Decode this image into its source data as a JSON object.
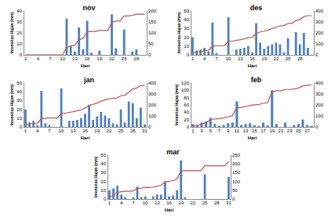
{
  "chart_data": [
    {
      "type": "bar",
      "title": "nov",
      "x_label": "Hari",
      "y_label": "Intensitas Hujan (mm)",
      "categories": [
        "1",
        null,
        null,
        "4",
        null,
        null,
        "7",
        null,
        null,
        "10",
        null,
        null,
        "13",
        null,
        null,
        "16",
        null,
        null,
        "19",
        null,
        null,
        "22",
        null,
        null,
        "25",
        null,
        null,
        "28",
        null,
        null
      ],
      "series": [
        {
          "type": "bar",
          "color": "#4f81bd",
          "values": [
            0,
            0,
            0,
            0,
            0,
            0,
            0,
            0,
            0,
            0,
            33,
            8,
            3,
            25,
            5,
            31,
            2,
            0,
            4,
            0,
            0,
            37,
            6,
            0,
            23,
            0,
            3,
            5,
            0,
            0
          ]
        },
        {
          "type": "line",
          "axis": "y2",
          "color": "#c0504d",
          "values": [
            0,
            0,
            0,
            0,
            0,
            0,
            0,
            0,
            0,
            0,
            33,
            41,
            44,
            69,
            74,
            105,
            107,
            107,
            111,
            111,
            111,
            148,
            154,
            154,
            177,
            177,
            180,
            185,
            185,
            185
          ]
        }
      ],
      "ylim": [
        0,
        40
      ],
      "yticks": [
        0,
        10,
        20,
        30,
        40
      ],
      "y2lim": [
        0,
        200
      ],
      "y2ticks": [
        0,
        50,
        100,
        150,
        200
      ],
      "grid": false
    },
    {
      "type": "bar",
      "title": "des",
      "x_label": "Hari",
      "y_label": "Intensitas Hujan (mm)",
      "categories": [
        "1",
        null,
        null,
        "4",
        null,
        null,
        "7",
        null,
        null,
        "10",
        null,
        null,
        "13",
        null,
        null,
        "16",
        null,
        null,
        "19",
        null,
        null,
        "22",
        null,
        null,
        "25",
        null,
        null,
        "28",
        null,
        null,
        null
      ],
      "series": [
        {
          "type": "bar",
          "color": "#4f81bd",
          "values": [
            20,
            5,
            6,
            8,
            4,
            37,
            2,
            0,
            0,
            43,
            0,
            6,
            7,
            8,
            10,
            3,
            36,
            14,
            7,
            10,
            12,
            14,
            12,
            3,
            19,
            0,
            26,
            12,
            25,
            8,
            0
          ]
        },
        {
          "type": "line",
          "axis": "y2",
          "color": "#c0504d",
          "values": [
            20,
            25,
            31,
            39,
            43,
            80,
            82,
            82,
            82,
            125,
            125,
            131,
            138,
            146,
            156,
            159,
            195,
            209,
            216,
            226,
            238,
            252,
            264,
            267,
            286,
            286,
            312,
            324,
            349,
            357,
            357
          ]
        }
      ],
      "ylim": [
        0,
        50
      ],
      "yticks": [
        0,
        10,
        20,
        30,
        40,
        50
      ],
      "y2lim": [
        0,
        400
      ],
      "y2ticks": [
        0,
        100,
        200,
        300,
        400
      ],
      "grid": false
    },
    {
      "type": "bar",
      "title": "jan",
      "x_label": "Hari",
      "y_label": "Intensitas Hujan (mm)",
      "categories": [
        "1",
        null,
        null,
        "4",
        null,
        null,
        "7",
        null,
        null,
        "10",
        null,
        null,
        "13",
        null,
        null,
        "16",
        null,
        null,
        "19",
        null,
        null,
        "22",
        null,
        null,
        "25",
        null,
        null,
        "28",
        null,
        null,
        "31"
      ],
      "series": [
        {
          "type": "bar",
          "color": "#4f81bd",
          "values": [
            20,
            5,
            7,
            2,
            41,
            4,
            2,
            0,
            0,
            44,
            0,
            7,
            7,
            8,
            10,
            15,
            25,
            8,
            12,
            17,
            13,
            10,
            4,
            3,
            20,
            5,
            29,
            27,
            10,
            22,
            3
          ]
        },
        {
          "type": "line",
          "axis": "y2",
          "color": "#c0504d",
          "values": [
            20,
            25,
            32,
            34,
            75,
            79,
            81,
            81,
            81,
            125,
            125,
            132,
            139,
            147,
            157,
            172,
            197,
            205,
            217,
            234,
            247,
            257,
            261,
            264,
            284,
            289,
            318,
            345,
            355,
            377,
            380
          ]
        }
      ],
      "ylim": [
        0,
        50
      ],
      "yticks": [
        0,
        10,
        20,
        30,
        40,
        50
      ],
      "y2lim": [
        0,
        400
      ],
      "y2ticks": [
        0,
        100,
        200,
        300,
        400
      ],
      "grid": false
    },
    {
      "type": "bar",
      "title": "feb",
      "x_label": "Hari",
      "y_label": "Intensitas Hujan (mm)",
      "categories": [
        "1",
        null,
        "3",
        null,
        "5",
        null,
        "7",
        null,
        "9",
        null,
        "11",
        null,
        "13",
        null,
        "15",
        null,
        "17",
        null,
        "19",
        null,
        "21",
        null,
        "23",
        null,
        "25",
        null,
        "27",
        null
      ],
      "series": [
        {
          "type": "bar",
          "color": "#4f81bd",
          "values": [
            8,
            5,
            12,
            15,
            25,
            8,
            3,
            5,
            10,
            12,
            70,
            5,
            8,
            10,
            5,
            3,
            12,
            5,
            100,
            8,
            0,
            12,
            0,
            5,
            8,
            20,
            5,
            3
          ]
        },
        {
          "type": "line",
          "axis": "y2",
          "color": "#c0504d",
          "values": [
            8,
            13,
            25,
            40,
            65,
            73,
            76,
            81,
            91,
            103,
            173,
            178,
            186,
            196,
            201,
            204,
            216,
            221,
            321,
            329,
            329,
            341,
            341,
            346,
            354,
            374,
            379,
            382
          ]
        }
      ],
      "ylim": [
        0,
        120
      ],
      "yticks": [
        0,
        20,
        40,
        60,
        80,
        100,
        120
      ],
      "y2lim": [
        0,
        400
      ],
      "y2ticks": [
        0,
        100,
        200,
        300,
        400
      ],
      "grid": false
    },
    {
      "type": "bar",
      "title": "mar",
      "x_label": "Hari",
      "y_label": "Intensitas Hujan (mm)",
      "categories": [
        "1",
        null,
        null,
        "4",
        null,
        null,
        "7",
        null,
        null,
        "10",
        null,
        null,
        "13",
        null,
        null,
        "16",
        null,
        null,
        "19",
        null,
        null,
        "22",
        null,
        null,
        "25",
        null,
        null,
        "28",
        null,
        null,
        "31"
      ],
      "series": [
        {
          "type": "bar",
          "color": "#4f81bd",
          "values": [
            10,
            12,
            15,
            5,
            2,
            0,
            2,
            14,
            2,
            3,
            0,
            3,
            5,
            5,
            20,
            3,
            4,
            10,
            44,
            2,
            0,
            0,
            0,
            0,
            28,
            0,
            0,
            0,
            0,
            0,
            25
          ]
        },
        {
          "type": "line",
          "axis": "y2",
          "color": "#c0504d",
          "values": [
            10,
            22,
            37,
            42,
            44,
            44,
            46,
            60,
            62,
            65,
            65,
            68,
            73,
            78,
            98,
            101,
            105,
            115,
            159,
            161,
            161,
            161,
            161,
            161,
            189,
            189,
            189,
            189,
            189,
            189,
            214
          ]
        }
      ],
      "ylim": [
        0,
        50
      ],
      "yticks": [
        0,
        10,
        20,
        30,
        40,
        50
      ],
      "y2lim": [
        0,
        250
      ],
      "y2ticks": [
        0,
        50,
        100,
        150,
        200,
        250
      ],
      "grid": false
    }
  ]
}
